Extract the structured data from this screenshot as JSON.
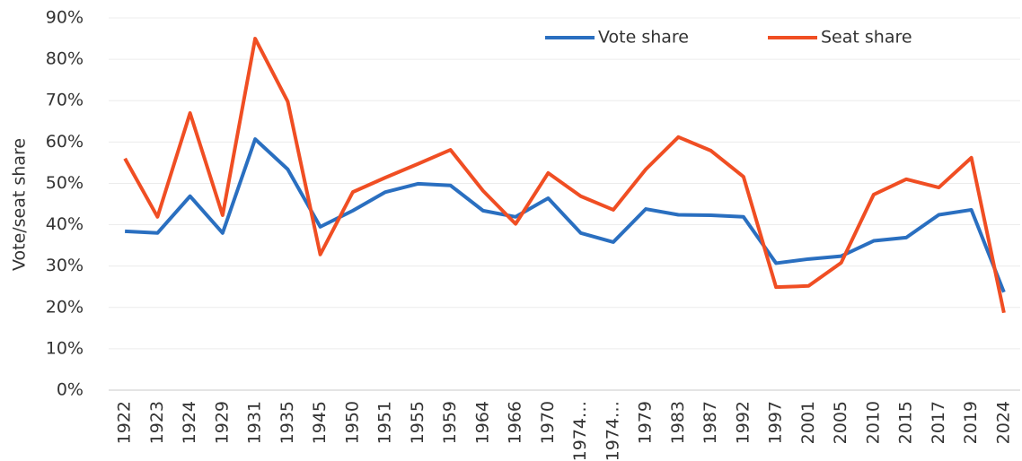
{
  "chart_data": {
    "type": "line",
    "y_label": "Vote/seat share",
    "categories": [
      "1922",
      "1923",
      "1924",
      "1929",
      "1931",
      "1935",
      "1945",
      "1950",
      "1951",
      "1955",
      "1959",
      "1964",
      "1966",
      "1970",
      "1974…",
      "1974…",
      "1979",
      "1983",
      "1987",
      "1992",
      "1997",
      "2001",
      "2005",
      "2010",
      "2015",
      "2017",
      "2019",
      "2024"
    ],
    "series": [
      {
        "name": "Vote share",
        "color": "#2a6fc0",
        "values": [
          38.4,
          38.0,
          46.9,
          38.0,
          60.7,
          53.4,
          39.5,
          43.4,
          47.9,
          49.9,
          49.5,
          43.4,
          41.9,
          46.4,
          38.0,
          35.8,
          43.8,
          42.4,
          42.3,
          41.9,
          30.7,
          31.7,
          32.4,
          36.1,
          36.9,
          42.4,
          43.6,
          23.7
        ]
      },
      {
        "name": "Seat share",
        "color": "#f04e23",
        "values": [
          56.0,
          41.9,
          67.0,
          42.3,
          85.0,
          69.8,
          32.8,
          47.9,
          51.4,
          54.7,
          58.1,
          48.2,
          40.2,
          52.5,
          46.9,
          43.6,
          53.4,
          61.2,
          57.9,
          51.6,
          24.9,
          25.2,
          30.8,
          47.3,
          51.0,
          49.0,
          56.2,
          18.7
        ]
      }
    ],
    "ylim": [
      0,
      90
    ],
    "yticks": [
      {
        "value": 0,
        "label": "0%"
      },
      {
        "value": 10,
        "label": "10%"
      },
      {
        "value": 20,
        "label": "20%"
      },
      {
        "value": 30,
        "label": "30%"
      },
      {
        "value": 40,
        "label": "40%"
      },
      {
        "value": 50,
        "label": "50%"
      },
      {
        "value": 60,
        "label": "60%"
      },
      {
        "value": 70,
        "label": "70%"
      },
      {
        "value": 80,
        "label": "80%"
      },
      {
        "value": 90,
        "label": "90%"
      }
    ],
    "grid": true,
    "legend": "top"
  }
}
